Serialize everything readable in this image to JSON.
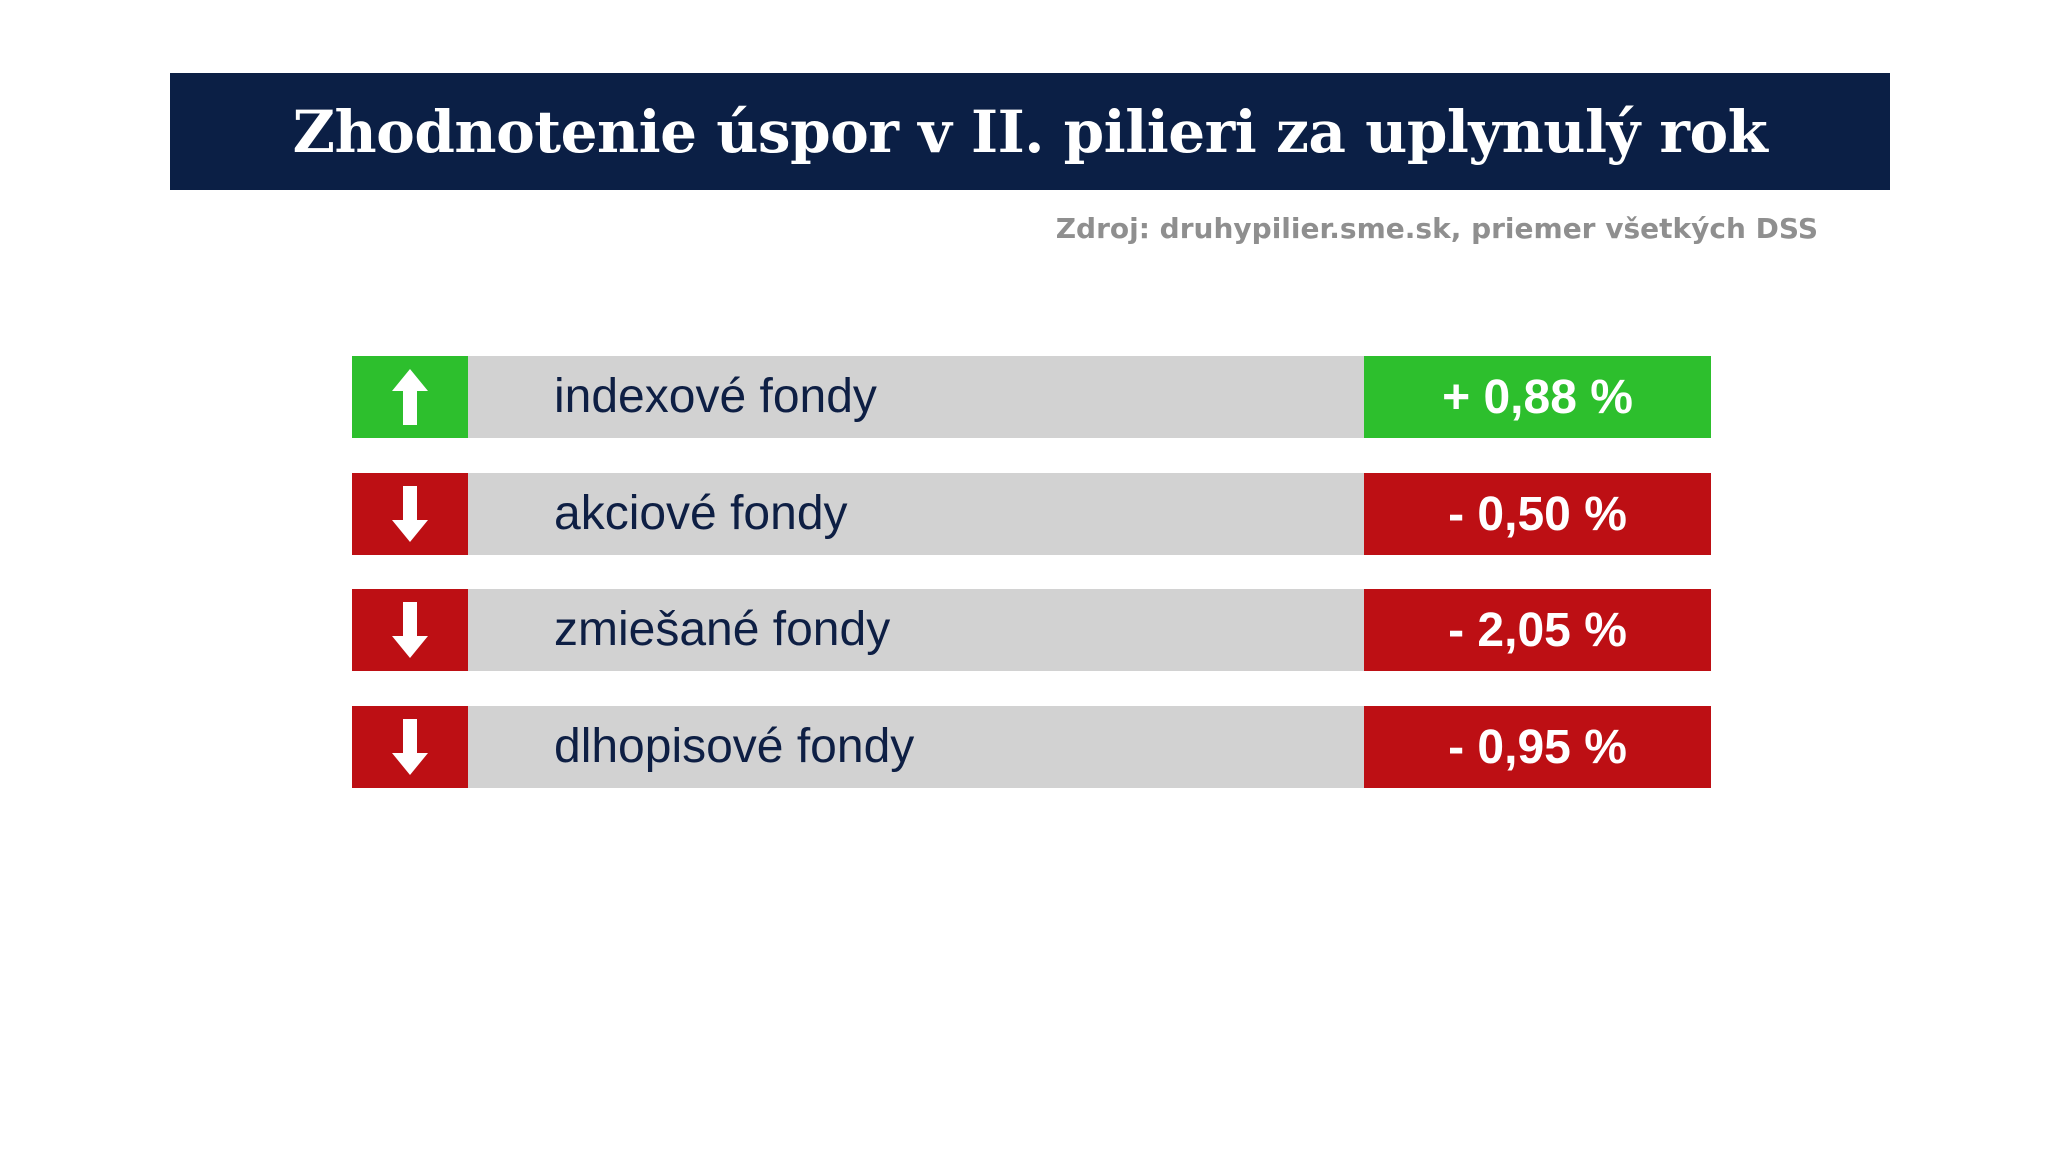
{
  "title": "Zhodnotenie úspor v II. pilieri za uplynulý rok",
  "source": "Zdroj: druhypilier.sme.sk, priemer všetkých DSS",
  "colors": {
    "header_bg": "#0b1f45",
    "positive": "#2dbf2d",
    "negative": "#bd0f14",
    "row_bg": "#d2d2d2",
    "label_text": "#0e1f44",
    "source_text": "#8f8f8f"
  },
  "chart_data": {
    "type": "table",
    "title": "Zhodnotenie úspor v II. pilieri za uplynulý rok",
    "categories": [
      "indexové fondy",
      "akciové fondy",
      "zmiešané fondy",
      "dlhopisové fondy"
    ],
    "values": [
      0.88,
      -0.5,
      -2.05,
      -0.95
    ],
    "unit": "%",
    "rows": [
      {
        "label": "indexové fondy",
        "value_text": "+ 0,88 %",
        "value": 0.88,
        "direction": "up",
        "icon": "arrow-up-icon"
      },
      {
        "label": "akciové fondy",
        "value_text": "- 0,50 %",
        "value": -0.5,
        "direction": "down",
        "icon": "arrow-down-icon"
      },
      {
        "label": "zmiešané fondy",
        "value_text": "- 2,05 %",
        "value": -2.05,
        "direction": "down",
        "icon": "arrow-down-icon"
      },
      {
        "label": "dlhopisové fondy",
        "value_text": "- 0,95 %",
        "value": -0.95,
        "direction": "down",
        "icon": "arrow-down-icon"
      }
    ]
  }
}
